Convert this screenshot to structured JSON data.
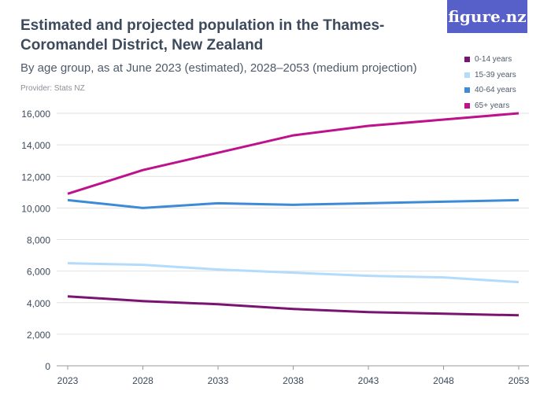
{
  "header": {
    "title": "Estimated and projected population in the Thames-Coromandel District, New Zealand",
    "subtitle": "By age group, as at June 2023 (estimated), 2028–2053 (medium projection)",
    "provider": "Provider: Stats NZ",
    "logo": "figure.nz"
  },
  "chart_data": {
    "type": "line",
    "title": "Estimated and projected population in the Thames-Coromandel District, New Zealand",
    "x": [
      2023,
      2028,
      2033,
      2038,
      2043,
      2048,
      2053
    ],
    "ylim": [
      0,
      16000
    ],
    "yticks": [
      0,
      2000,
      4000,
      6000,
      8000,
      10000,
      12000,
      14000,
      16000
    ],
    "ytick_labels": [
      "0",
      "2,000",
      "4,000",
      "6,000",
      "8,000",
      "10,000",
      "12,000",
      "14,000",
      "16,000"
    ],
    "xtick_labels": [
      "2023",
      "2028",
      "2033",
      "2038",
      "2043",
      "2048",
      "2053"
    ],
    "grid": true,
    "legend": "top-right",
    "series": [
      {
        "name": "0-14 years",
        "color": "#7b1470",
        "values": [
          4400,
          4100,
          3900,
          3600,
          3400,
          3300,
          3200
        ]
      },
      {
        "name": "15-39 years",
        "color": "#b3dbfb",
        "values": [
          6500,
          6400,
          6100,
          5900,
          5700,
          5600,
          5300
        ]
      },
      {
        "name": "40-64 years",
        "color": "#3d8bd6",
        "values": [
          10500,
          10000,
          10300,
          10200,
          10300,
          10400,
          10500
        ]
      },
      {
        "name": "65+ years",
        "color": "#be118c",
        "values": [
          10900,
          12400,
          13500,
          14600,
          15200,
          15600,
          16000
        ]
      }
    ]
  }
}
